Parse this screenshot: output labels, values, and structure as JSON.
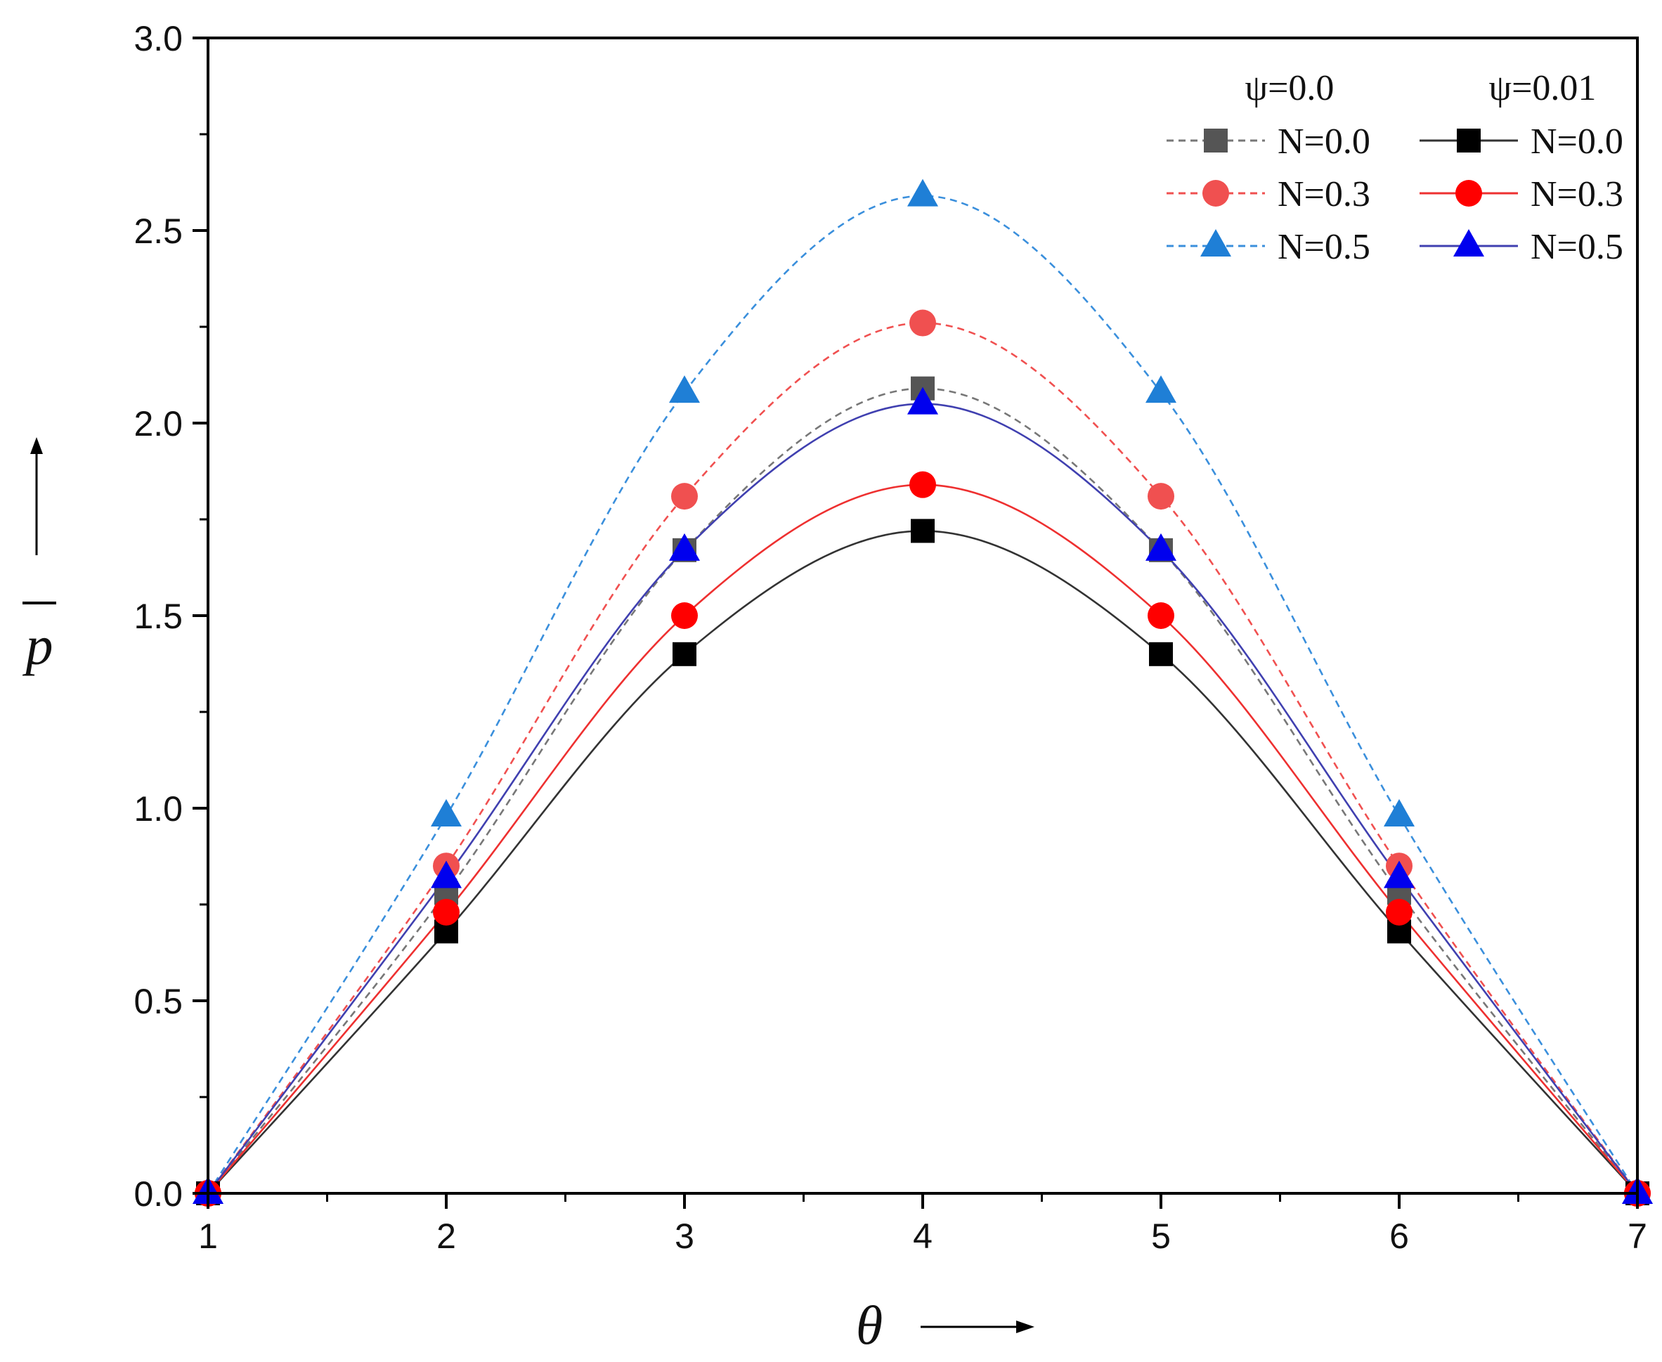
{
  "chart_data": {
    "type": "line",
    "title": "",
    "xlabel": "θ",
    "ylabel": "p",
    "xlim": [
      1,
      7
    ],
    "ylim": [
      0.0,
      3.0
    ],
    "x_ticks": [
      "1",
      "2",
      "3",
      "4",
      "5",
      "6",
      "7"
    ],
    "y_ticks": [
      "0.0",
      "0.5",
      "1.0",
      "1.5",
      "2.0",
      "2.5",
      "3.0"
    ],
    "grid": false,
    "legend_position": "top-right",
    "legend_groups": [
      {
        "heading": "ψ=0.0",
        "line_style": "dashed"
      },
      {
        "heading": "ψ=0.01",
        "line_style": "solid"
      }
    ],
    "x": [
      1,
      2,
      3,
      4,
      5,
      6,
      7
    ],
    "series": [
      {
        "id": "psi0-n00",
        "group": 0,
        "name": "N=0.0",
        "marker": "square",
        "color": "#555555",
        "line_color": "#777777",
        "dashed": true,
        "values": [
          0.0,
          0.78,
          1.67,
          2.09,
          1.67,
          0.78,
          0.0
        ]
      },
      {
        "id": "psi0-n03",
        "group": 0,
        "name": "N=0.3",
        "marker": "circle",
        "color": "#f05050",
        "line_color": "#f05050",
        "dashed": true,
        "values": [
          0.0,
          0.85,
          1.81,
          2.26,
          1.81,
          0.85,
          0.0
        ]
      },
      {
        "id": "psi0-n05",
        "group": 0,
        "name": "N=0.5",
        "marker": "triangle",
        "color": "#1f7fd6",
        "line_color": "#3a8fdc",
        "dashed": true,
        "values": [
          0.0,
          0.98,
          2.08,
          2.59,
          2.08,
          0.98,
          0.0
        ]
      },
      {
        "id": "psi001-n00",
        "group": 1,
        "name": "N=0.0",
        "marker": "square",
        "color": "#000000",
        "line_color": "#333333",
        "dashed": false,
        "values": [
          0.0,
          0.68,
          1.4,
          1.72,
          1.4,
          0.68,
          0.0
        ]
      },
      {
        "id": "psi001-n03",
        "group": 1,
        "name": "N=0.3",
        "marker": "circle",
        "color": "#ff0000",
        "line_color": "#ee3030",
        "dashed": false,
        "values": [
          0.0,
          0.73,
          1.5,
          1.84,
          1.5,
          0.73,
          0.0
        ]
      },
      {
        "id": "psi001-n05",
        "group": 1,
        "name": "N=0.5",
        "marker": "triangle",
        "color": "#0000ee",
        "line_color": "#4040b0",
        "dashed": false,
        "values": [
          0.0,
          0.82,
          1.67,
          2.05,
          1.67,
          0.82,
          0.0
        ]
      }
    ]
  }
}
